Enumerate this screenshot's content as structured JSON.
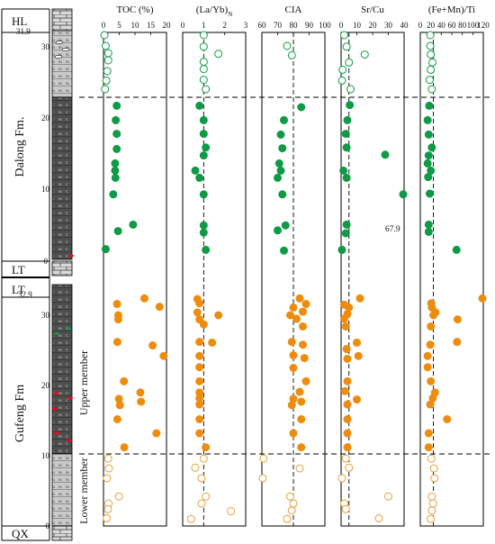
{
  "chart_data": {
    "type": "scatter",
    "y_axis": {
      "range": [
        0,
        33
      ]
    },
    "units": [
      {
        "name": "HL",
        "range": [
          31.9,
          33
        ]
      },
      {
        "name": "Dalong Fm.",
        "range": [
          0,
          31.9
        ]
      },
      {
        "name": "LT",
        "range": [
          -1,
          0
        ]
      },
      {
        "name": "LT",
        "range": [
          32.9,
          34
        ]
      },
      {
        "name": "Gufeng Fm",
        "range": [
          0,
          32.9
        ]
      },
      {
        "name": "QX",
        "range": [
          -1,
          0
        ]
      }
    ],
    "members": [
      {
        "name": "Upper member",
        "range": [
          10.3,
          32.9
        ]
      },
      {
        "name": "Lower member",
        "range": [
          0,
          10.3
        ]
      }
    ],
    "depth_ticks": {
      "dalong": [
        "0",
        "10",
        "20",
        "30",
        "31.9"
      ],
      "gufeng": [
        "0",
        "10",
        "20",
        "30",
        "32.9"
      ]
    },
    "dalong_tick_values": [
      0,
      10,
      20,
      30,
      31.9
    ],
    "gufeng_tick_values": [
      0,
      10,
      20,
      30,
      32.9
    ],
    "boundaries": {
      "dalong": 22.5,
      "gufeng": 10.3
    },
    "panels": [
      {
        "title": "TOC (%)",
        "xlim": [
          0,
          20
        ],
        "ticks": [
          "0",
          "5",
          "10",
          "15",
          "20"
        ],
        "tick_values": [
          0,
          5,
          10,
          15,
          20
        ],
        "ref": null,
        "dalong_open": [
          [
            0.3,
            31
          ],
          [
            0.7,
            29.5
          ],
          [
            1.5,
            28.5
          ],
          [
            1.5,
            27.5
          ],
          [
            1.2,
            26
          ],
          [
            0.9,
            24.7
          ],
          [
            0.5,
            23.5
          ]
        ],
        "dalong_filled": [
          [
            4.2,
            21.2
          ],
          [
            3.9,
            19.2
          ],
          [
            4.2,
            17.3
          ],
          [
            4.2,
            15.2
          ],
          [
            3.7,
            13.2
          ],
          [
            3.7,
            12.2
          ],
          [
            3.8,
            11.2
          ],
          [
            3.1,
            8.9
          ],
          [
            9.4,
            4.7
          ],
          [
            4.6,
            3.8
          ],
          [
            0.7,
            1.3
          ]
        ],
        "gufeng_filled": [
          [
            13,
            32.4
          ],
          [
            4.3,
            31.6
          ],
          [
            17.8,
            31.2
          ],
          [
            4.7,
            30
          ],
          [
            4.7,
            29.4
          ],
          [
            4.4,
            26.2
          ],
          [
            15.6,
            25.7
          ],
          [
            19.1,
            24.2
          ],
          [
            6.5,
            20.6
          ],
          [
            11.7,
            19
          ],
          [
            4.9,
            18.1
          ],
          [
            11.9,
            17.7
          ],
          [
            5.2,
            17.2
          ],
          [
            4.4,
            15.2
          ],
          [
            16.8,
            13.2
          ],
          [
            6.6,
            11.2
          ]
        ],
        "gufeng_open": [
          [
            1.5,
            9.6
          ],
          [
            1.7,
            8.2
          ],
          [
            1.1,
            6.8
          ],
          [
            4.9,
            4.2
          ],
          [
            1.6,
            3.2
          ],
          [
            1.4,
            2.4
          ],
          [
            1.0,
            1.1
          ]
        ],
        "annotation": null
      },
      {
        "title": "(La/Yb)N",
        "xlim": [
          0,
          3
        ],
        "ticks": [
          "0",
          "1",
          "2",
          "3"
        ],
        "tick_values": [
          0,
          1,
          2,
          3
        ],
        "ref": 1,
        "dalong_open": [
          [
            1.0,
            31
          ],
          [
            1.0,
            29.4
          ],
          [
            1.7,
            28.4
          ],
          [
            1.0,
            27.3
          ],
          [
            1.0,
            26.3
          ],
          [
            1.0,
            24.8
          ],
          [
            1.1,
            23.5
          ]
        ],
        "dalong_filled": [
          [
            0.8,
            21.2
          ],
          [
            1.0,
            19.2
          ],
          [
            1.0,
            17.3
          ],
          [
            1.1,
            15.4
          ],
          [
            1.0,
            14.3
          ],
          [
            0.6,
            12.2
          ],
          [
            0.8,
            11.2
          ],
          [
            1.0,
            8.9
          ],
          [
            1.0,
            4.6
          ],
          [
            1.0,
            3.6
          ],
          [
            1.1,
            1.2
          ]
        ],
        "gufeng_filled": [
          [
            0.7,
            32.3
          ],
          [
            0.8,
            31.7
          ],
          [
            0.7,
            30.4
          ],
          [
            1.7,
            30
          ],
          [
            0.8,
            29.4
          ],
          [
            1.0,
            28.7
          ],
          [
            0.8,
            26.2
          ],
          [
            1.4,
            26.1
          ],
          [
            0.8,
            24.2
          ],
          [
            0.8,
            22.6
          ],
          [
            0.8,
            20.6
          ],
          [
            0.8,
            19
          ],
          [
            0.8,
            18.2
          ],
          [
            0.8,
            17.3
          ],
          [
            0.8,
            15.2
          ],
          [
            0.8,
            13.2
          ],
          [
            1.1,
            11.2
          ]
        ],
        "gufeng_open": [
          [
            1.0,
            9.6
          ],
          [
            0.6,
            8.3
          ],
          [
            0.9,
            6.8
          ],
          [
            1.1,
            4.2
          ],
          [
            0.9,
            3.2
          ],
          [
            2.3,
            2.1
          ],
          [
            0.4,
            1.0
          ]
        ],
        "annotation": null
      },
      {
        "title": "CIA",
        "xlim": [
          60,
          100
        ],
        "ticks": [
          "60",
          "70",
          "80",
          "90",
          "100"
        ],
        "tick_values": [
          60,
          70,
          80,
          90,
          100
        ],
        "ref": 80,
        "dalong_open": [
          [
            76,
            29.5
          ],
          [
            79,
            28.2
          ]
        ],
        "dalong_filled": [
          [
            85,
            21
          ],
          [
            74,
            19.2
          ],
          [
            72,
            17.2
          ],
          [
            73,
            15.3
          ],
          [
            71,
            13.2
          ],
          [
            72,
            12.2
          ],
          [
            70,
            11.2
          ],
          [
            73,
            8.9
          ],
          [
            75,
            4.6
          ],
          [
            70,
            3.9
          ],
          [
            74,
            1.1
          ]
        ],
        "gufeng_filled": [
          [
            84,
            32.4
          ],
          [
            88,
            31.6
          ],
          [
            80,
            31.1
          ],
          [
            86,
            30.5
          ],
          [
            78,
            30
          ],
          [
            82,
            29.5
          ],
          [
            86,
            28.4
          ],
          [
            79,
            26.2
          ],
          [
            86,
            25.8
          ],
          [
            80,
            24.3
          ],
          [
            87,
            23.9
          ],
          [
            80,
            22.5
          ],
          [
            88,
            20.6
          ],
          [
            84,
            19.1
          ],
          [
            80,
            18.1
          ],
          [
            85,
            17.7
          ],
          [
            79,
            17.2
          ],
          [
            85,
            15.2
          ],
          [
            80,
            13.2
          ],
          [
            85,
            11.2
          ]
        ],
        "gufeng_open": [
          [
            61,
            9.6
          ],
          [
            84,
            8.2
          ],
          [
            60,
            6.8
          ],
          [
            78,
            4.2
          ],
          [
            80,
            3.2
          ],
          [
            79,
            2.2
          ],
          [
            76,
            1.0
          ]
        ],
        "annotation": null
      },
      {
        "title": "Sr/Cu",
        "xlim": [
          0,
          40
        ],
        "ticks": [
          "0",
          "10",
          "20",
          "30",
          "40"
        ],
        "tick_values": [
          0,
          10,
          20,
          30,
          40
        ],
        "ref": 5,
        "dalong_open": [
          [
            2,
            31
          ],
          [
            3.5,
            29.4
          ],
          [
            15,
            28.3
          ],
          [
            5,
            27.2
          ],
          [
            1,
            26.2
          ],
          [
            0.5,
            24.7
          ],
          [
            6,
            23.5
          ]
        ],
        "dalong_filled": [
          [
            5.5,
            21.3
          ],
          [
            4,
            19.2
          ],
          [
            3,
            17.3
          ],
          [
            3.5,
            15.4
          ],
          [
            28,
            14.4
          ],
          [
            1.5,
            12.2
          ],
          [
            3.5,
            11.2
          ],
          [
            46,
            8.9
          ],
          [
            3.5,
            4.7
          ],
          [
            3,
            3.5
          ],
          [
            0.5,
            1.2
          ]
        ],
        "gufeng_filled": [
          [
            12,
            32.4
          ],
          [
            2,
            31.5
          ],
          [
            5,
            31.1
          ],
          [
            4,
            30.2
          ],
          [
            2,
            29.5
          ],
          [
            3,
            28.4
          ],
          [
            10,
            26.1
          ],
          [
            3.5,
            25.2
          ],
          [
            11,
            24.2
          ],
          [
            4,
            23.8
          ],
          [
            4,
            20.6
          ],
          [
            2.5,
            19.2
          ],
          [
            10,
            18
          ],
          [
            4,
            17.3
          ],
          [
            4,
            15.2
          ],
          [
            4,
            13.2
          ],
          [
            4,
            11.2
          ]
        ],
        "gufeng_open": [
          [
            3,
            9.6
          ],
          [
            5,
            8.3
          ],
          [
            0.5,
            6.8
          ],
          [
            30,
            4.2
          ],
          [
            2,
            3.2
          ],
          [
            3,
            2.4
          ],
          [
            24,
            1.1
          ]
        ],
        "annotation": {
          "text": "67.9",
          "x": 46,
          "y": 8.9
        }
      },
      {
        "title": "(Fe+Mn)/Ti",
        "xlim": [
          0,
          120
        ],
        "ticks": [
          "0",
          "20",
          "40",
          "60",
          "80",
          "100",
          "120"
        ],
        "tick_values": [
          0,
          20,
          40,
          60,
          80,
          100,
          120
        ],
        "ref": 25,
        "dalong_open": [
          [
            19,
            31
          ],
          [
            19,
            29.5
          ],
          [
            20,
            28.3
          ],
          [
            23,
            27.2
          ],
          [
            20,
            26.2
          ],
          [
            18,
            24.8
          ],
          [
            22,
            23.5
          ]
        ],
        "dalong_filled": [
          [
            17,
            21.2
          ],
          [
            14,
            19.2
          ],
          [
            16,
            17.2
          ],
          [
            22,
            15.4
          ],
          [
            16,
            14.3
          ],
          [
            14,
            13.2
          ],
          [
            20,
            12.2
          ],
          [
            15,
            11.3
          ],
          [
            18,
            9
          ],
          [
            16,
            4.7
          ],
          [
            16,
            3.7
          ],
          [
            69,
            1.2
          ]
        ],
        "gufeng_filled": [
          [
            120,
            32.4
          ],
          [
            21,
            31.7
          ],
          [
            22,
            31.1
          ],
          [
            29,
            30.4
          ],
          [
            25,
            30
          ],
          [
            71,
            29.4
          ],
          [
            20,
            28.4
          ],
          [
            70,
            26.2
          ],
          [
            19,
            25.8
          ],
          [
            14,
            24.2
          ],
          [
            14,
            22.6
          ],
          [
            20,
            20.6
          ],
          [
            28,
            19
          ],
          [
            24,
            18.2
          ],
          [
            19,
            17.3
          ],
          [
            51,
            15.2
          ],
          [
            16,
            13.2
          ],
          [
            16,
            11.2
          ]
        ],
        "gufeng_open": [
          [
            21,
            9.6
          ],
          [
            26,
            8.2
          ],
          [
            27,
            6.8
          ],
          [
            22,
            4.2
          ],
          [
            24,
            3.2
          ],
          [
            22,
            2.2
          ],
          [
            20,
            1.0
          ]
        ],
        "annotation": null
      }
    ]
  },
  "colors": {
    "green": "#0f9a46",
    "orange": "#ee8c0e",
    "open_orange": "#e4a13a",
    "dark_litho": "#4e4e4e",
    "light_litho": "#c9c9c9",
    "red_marker": "#e0101a"
  }
}
